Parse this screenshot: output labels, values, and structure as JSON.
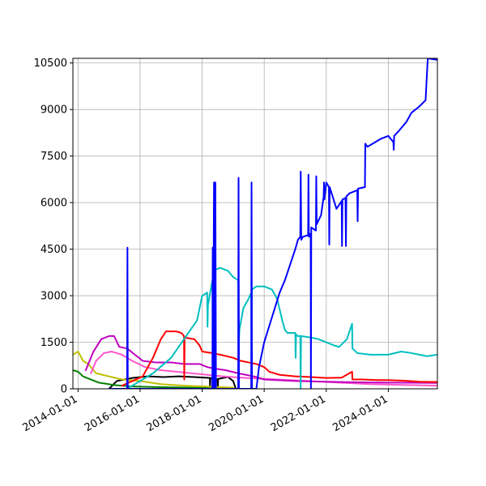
{
  "chart_data": {
    "type": "line",
    "title": "",
    "xlabel": "",
    "ylabel": "",
    "x_axis": {
      "scale": "date",
      "range": [
        "2013-11-01",
        "2025-08-01"
      ],
      "ticks": [
        "2014-01-01",
        "2016-01-01",
        "2018-01-01",
        "2020-01-01",
        "2022-01-01",
        "2024-01-01"
      ],
      "tick_labels": [
        "2014-01-01",
        "2016-01-01",
        "2018-01-01",
        "2020-01-01",
        "2022-01-01",
        "2024-01-01"
      ]
    },
    "y_axis": {
      "range": [
        0,
        10650
      ],
      "ticks": [
        0,
        1500,
        3000,
        4500,
        6000,
        7500,
        9000,
        10500
      ],
      "tick_labels": [
        "0",
        "1500",
        "3000",
        "4500",
        "6000",
        "7500",
        "9000",
        "10500"
      ]
    },
    "grid": true,
    "legend": "none",
    "series": [
      {
        "color": "#0000ff",
        "points": [
          [
            "2015-01-01",
            0
          ],
          [
            "2015-08-01",
            0
          ],
          [
            "2015-08-05",
            4550
          ],
          [
            "2015-08-09",
            0
          ],
          [
            "2018-01-01",
            0
          ],
          [
            "2018-05-01",
            0
          ],
          [
            "2018-05-05",
            4550
          ],
          [
            "2018-05-09",
            0
          ],
          [
            "2018-05-20",
            6650
          ],
          [
            "2018-05-26",
            0
          ],
          [
            "2018-06-05",
            6650
          ],
          [
            "2018-06-12",
            0
          ],
          [
            "2018-09-01",
            0
          ],
          [
            "2019-03-01",
            0
          ],
          [
            "2019-03-05",
            6800
          ],
          [
            "2019-03-10",
            0
          ],
          [
            "2019-08-01",
            0
          ],
          [
            "2019-08-05",
            6650
          ],
          [
            "2019-08-10",
            0
          ],
          [
            "2019-10-01",
            0
          ],
          [
            "2019-11-01",
            700
          ],
          [
            "2020-01-01",
            1500
          ],
          [
            "2020-04-01",
            2300
          ],
          [
            "2020-07-01",
            3100
          ],
          [
            "2020-09-01",
            3500
          ],
          [
            "2020-11-01",
            4000
          ],
          [
            "2021-01-01",
            4500
          ],
          [
            "2021-02-01",
            4800
          ],
          [
            "2021-03-01",
            4900
          ],
          [
            "2021-03-06",
            7000
          ],
          [
            "2021-03-12",
            4800
          ],
          [
            "2021-04-01",
            4900
          ],
          [
            "2021-06-01",
            4950
          ],
          [
            "2021-06-05",
            6900
          ],
          [
            "2021-06-10",
            4900
          ],
          [
            "2021-07-01",
            5000
          ],
          [
            "2021-07-04",
            0
          ],
          [
            "2021-07-08",
            5200
          ],
          [
            "2021-09-01",
            5100
          ],
          [
            "2021-09-05",
            6850
          ],
          [
            "2021-09-10",
            5300
          ],
          [
            "2021-11-01",
            5600
          ],
          [
            "2021-12-01",
            6200
          ],
          [
            "2021-12-05",
            6650
          ],
          [
            "2021-12-10",
            6100
          ],
          [
            "2022-01-01",
            6650
          ],
          [
            "2022-02-01",
            6500
          ],
          [
            "2022-02-05",
            4650
          ],
          [
            "2022-02-10",
            6500
          ],
          [
            "2022-05-01",
            5800
          ],
          [
            "2022-07-01",
            6050
          ],
          [
            "2022-07-05",
            4600
          ],
          [
            "2022-07-10",
            6100
          ],
          [
            "2022-08-15",
            6150
          ],
          [
            "2022-08-20",
            4600
          ],
          [
            "2022-08-25",
            6200
          ],
          [
            "2022-10-01",
            6300
          ],
          [
            "2023-01-01",
            6400
          ],
          [
            "2023-01-05",
            5400
          ],
          [
            "2023-01-10",
            6450
          ],
          [
            "2023-04-01",
            6500
          ],
          [
            "2023-04-05",
            7900
          ],
          [
            "2023-05-01",
            7800
          ],
          [
            "2023-07-01",
            7900
          ],
          [
            "2023-10-01",
            8050
          ],
          [
            "2024-01-01",
            8150
          ],
          [
            "2024-03-01",
            7950
          ],
          [
            "2024-03-05",
            7700
          ],
          [
            "2024-03-10",
            8150
          ],
          [
            "2024-05-01",
            8300
          ],
          [
            "2024-08-01",
            8600
          ],
          [
            "2024-10-01",
            8900
          ],
          [
            "2025-01-01",
            9100
          ],
          [
            "2025-03-15",
            9300
          ],
          [
            "2025-04-01",
            10200
          ],
          [
            "2025-04-10",
            10650
          ],
          [
            "2025-08-01",
            10600
          ]
        ]
      },
      {
        "color": "#00bfbf",
        "points": [
          [
            "2015-08-01",
            0
          ],
          [
            "2016-06-01",
            500
          ],
          [
            "2017-01-01",
            1000
          ],
          [
            "2017-06-01",
            1600
          ],
          [
            "2017-11-01",
            2200
          ],
          [
            "2018-01-01",
            3000
          ],
          [
            "2018-03-01",
            3100
          ],
          [
            "2018-03-05",
            2000
          ],
          [
            "2018-03-10",
            2700
          ],
          [
            "2018-05-01",
            3500
          ],
          [
            "2018-05-05",
            1900
          ],
          [
            "2018-05-10",
            3800
          ],
          [
            "2018-08-01",
            3900
          ],
          [
            "2018-11-01",
            3800
          ],
          [
            "2019-01-01",
            3600
          ],
          [
            "2019-03-01",
            3500
          ],
          [
            "2019-03-05",
            1100
          ],
          [
            "2019-03-15",
            1900
          ],
          [
            "2019-05-01",
            2600
          ],
          [
            "2019-07-01",
            2900
          ],
          [
            "2019-08-01",
            3100
          ],
          [
            "2019-08-04",
            1800
          ],
          [
            "2019-08-09",
            3200
          ],
          [
            "2019-10-01",
            3300
          ],
          [
            "2020-01-01",
            3300
          ],
          [
            "2020-04-01",
            3200
          ],
          [
            "2020-06-01",
            2900
          ],
          [
            "2020-08-01",
            2200
          ],
          [
            "2020-09-01",
            1900
          ],
          [
            "2020-10-01",
            1800
          ],
          [
            "2020-12-01",
            1800
          ],
          [
            "2021-01-01",
            1800
          ],
          [
            "2021-01-05",
            1000
          ],
          [
            "2021-01-10",
            1750
          ],
          [
            "2021-02-01",
            1700
          ],
          [
            "2021-03-01",
            1700
          ],
          [
            "2021-03-05",
            0
          ],
          [
            "2021-03-10",
            1700
          ],
          [
            "2021-07-01",
            1650
          ],
          [
            "2021-10-01",
            1600
          ],
          [
            "2022-01-01",
            1500
          ],
          [
            "2022-04-01",
            1400
          ],
          [
            "2022-06-01",
            1350
          ],
          [
            "2022-09-01",
            1600
          ],
          [
            "2022-11-01",
            2100
          ],
          [
            "2022-11-05",
            1300
          ],
          [
            "2023-01-01",
            1150
          ],
          [
            "2023-06-01",
            1100
          ],
          [
            "2024-01-01",
            1100
          ],
          [
            "2024-06-01",
            1200
          ],
          [
            "2024-10-01",
            1150
          ],
          [
            "2025-01-01",
            1100
          ],
          [
            "2025-04-01",
            1050
          ],
          [
            "2025-08-01",
            1100
          ]
        ]
      },
      {
        "color": "#ff0000",
        "points": [
          [
            "2015-06-01",
            100
          ],
          [
            "2016-02-01",
            400
          ],
          [
            "2016-06-01",
            1000
          ],
          [
            "2016-09-01",
            1600
          ],
          [
            "2016-11-01",
            1850
          ],
          [
            "2017-03-01",
            1850
          ],
          [
            "2017-05-01",
            1800
          ],
          [
            "2017-06-01",
            1700
          ],
          [
            "2017-06-04",
            300
          ],
          [
            "2017-06-08",
            1650
          ],
          [
            "2017-10-01",
            1600
          ],
          [
            "2017-12-01",
            1400
          ],
          [
            "2018-01-01",
            1200
          ],
          [
            "2018-05-01",
            1150
          ],
          [
            "2018-08-01",
            1100
          ],
          [
            "2019-01-01",
            1000
          ],
          [
            "2019-04-01",
            900
          ],
          [
            "2019-07-01",
            850
          ],
          [
            "2019-10-01",
            800
          ],
          [
            "2020-01-01",
            700
          ],
          [
            "2020-03-01",
            550
          ],
          [
            "2020-07-01",
            450
          ],
          [
            "2021-01-01",
            400
          ],
          [
            "2021-07-01",
            380
          ],
          [
            "2022-01-01",
            350
          ],
          [
            "2022-07-01",
            360
          ],
          [
            "2022-11-01",
            550
          ],
          [
            "2022-11-05",
            300
          ],
          [
            "2023-03-01",
            300
          ],
          [
            "2023-09-01",
            280
          ],
          [
            "2024-01-01",
            280
          ],
          [
            "2024-07-01",
            260
          ],
          [
            "2025-01-01",
            230
          ],
          [
            "2025-08-01",
            220
          ]
        ]
      },
      {
        "color": "#bf00bf",
        "points": [
          [
            "2014-04-01",
            600
          ],
          [
            "2014-07-01",
            1200
          ],
          [
            "2014-10-01",
            1600
          ],
          [
            "2015-01-01",
            1700
          ],
          [
            "2015-03-01",
            1700
          ],
          [
            "2015-05-01",
            1350
          ],
          [
            "2015-08-01",
            1300
          ],
          [
            "2015-11-01",
            1100
          ],
          [
            "2016-02-01",
            900
          ],
          [
            "2016-07-01",
            850
          ],
          [
            "2017-01-01",
            850
          ],
          [
            "2017-06-01",
            800
          ],
          [
            "2017-12-01",
            800
          ],
          [
            "2018-03-01",
            700
          ],
          [
            "2018-06-01",
            650
          ],
          [
            "2018-10-01",
            600
          ],
          [
            "2019-03-01",
            500
          ],
          [
            "2019-09-01",
            400
          ],
          [
            "2020-01-01",
            300
          ],
          [
            "2021-01-01",
            250
          ],
          [
            "2022-01-01",
            230
          ],
          [
            "2023-01-01",
            210
          ],
          [
            "2024-01-01",
            200
          ],
          [
            "2025-08-01",
            190
          ]
        ]
      },
      {
        "color": "#ff55cc",
        "points": [
          [
            "2014-06-01",
            500
          ],
          [
            "2014-08-01",
            900
          ],
          [
            "2014-11-01",
            1150
          ],
          [
            "2015-02-01",
            1200
          ],
          [
            "2015-06-01",
            1100
          ],
          [
            "2015-10-01",
            900
          ],
          [
            "2016-03-01",
            700
          ],
          [
            "2016-09-01",
            600
          ],
          [
            "2017-03-01",
            550
          ],
          [
            "2017-09-01",
            500
          ],
          [
            "2018-03-01",
            450
          ],
          [
            "2018-09-01",
            400
          ],
          [
            "2019-06-01",
            350
          ],
          [
            "2020-06-01",
            300
          ],
          [
            "2021-06-01",
            250
          ],
          [
            "2022-06-01",
            200
          ],
          [
            "2023-06-01",
            150
          ],
          [
            "2025-08-01",
            100
          ]
        ]
      },
      {
        "color": "#bfbf00",
        "points": [
          [
            "2013-11-01",
            1100
          ],
          [
            "2014-01-01",
            1200
          ],
          [
            "2014-03-01",
            900
          ],
          [
            "2014-05-01",
            800
          ],
          [
            "2014-08-01",
            500
          ],
          [
            "2015-01-01",
            400
          ],
          [
            "2015-06-01",
            300
          ],
          [
            "2016-01-01",
            250
          ],
          [
            "2016-09-01",
            150
          ],
          [
            "2017-06-01",
            100
          ],
          [
            "2018-06-01",
            60
          ],
          [
            "2019-01-01",
            40
          ]
        ]
      },
      {
        "color": "#008000",
        "points": [
          [
            "2013-11-01",
            600
          ],
          [
            "2014-01-01",
            550
          ],
          [
            "2014-03-01",
            400
          ],
          [
            "2014-06-01",
            300
          ],
          [
            "2014-09-01",
            200
          ],
          [
            "2015-03-01",
            120
          ],
          [
            "2015-09-01",
            80
          ],
          [
            "2016-06-01",
            60
          ],
          [
            "2017-06-01",
            40
          ],
          [
            "2018-06-01",
            20
          ]
        ]
      },
      {
        "color": "#000000",
        "points": [
          [
            "2015-01-01",
            0
          ],
          [
            "2015-04-01",
            250
          ],
          [
            "2015-10-01",
            350
          ],
          [
            "2016-04-01",
            400
          ],
          [
            "2016-10-01",
            380
          ],
          [
            "2017-04-01",
            400
          ],
          [
            "2017-10-01",
            380
          ],
          [
            "2018-04-01",
            350
          ],
          [
            "2018-04-04",
            0
          ],
          [
            "2018-04-08",
            350
          ],
          [
            "2018-07-01",
            300
          ],
          [
            "2018-07-04",
            0
          ],
          [
            "2018-07-08",
            320
          ],
          [
            "2018-11-01",
            380
          ],
          [
            "2019-01-01",
            250
          ],
          [
            "2019-02-01",
            0
          ]
        ]
      }
    ]
  }
}
